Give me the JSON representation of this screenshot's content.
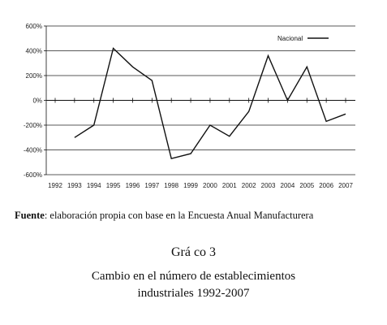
{
  "chart_data": {
    "type": "line",
    "x": [
      "1992",
      "1993",
      "1994",
      "1995",
      "1996",
      "1997",
      "1998",
      "1999",
      "2000",
      "2001",
      "2002",
      "2003",
      "2004",
      "2005",
      "2006",
      "2007"
    ],
    "series": [
      {
        "name": "Nacional",
        "values": [
          null,
          -300,
          -200,
          420,
          270,
          160,
          -470,
          -430,
          -200,
          -290,
          -90,
          360,
          0,
          270,
          -170,
          -110
        ]
      }
    ],
    "y_ticks": [
      "600%",
      "400%",
      "200%",
      "0%",
      "-200%",
      "-400%",
      "-600%"
    ],
    "ylim": [
      -600,
      600
    ],
    "grid": true,
    "legend_position": "top-right",
    "colors": {
      "line": "#111111",
      "grid": "#222222",
      "axis": "#111111"
    }
  },
  "source": {
    "label": "Fuente",
    "text": ": elaboración propia con base en la Encuesta Anual Manufacturera"
  },
  "figure": {
    "title": "Grá   co 3",
    "caption_line1": "Cambio en el número de establecimientos",
    "caption_line2": "industriales 1992-2007"
  }
}
